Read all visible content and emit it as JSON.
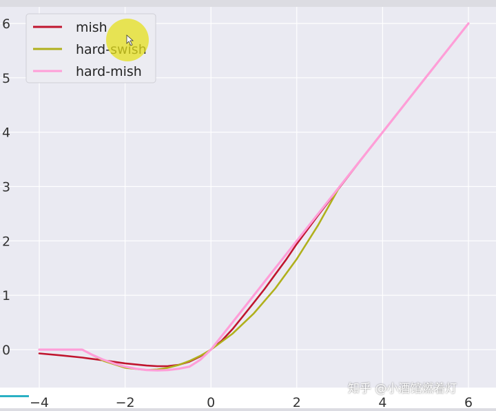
{
  "chart_data": {
    "type": "line",
    "title": "",
    "xlabel": "",
    "ylabel": "",
    "xlim": [
      -4.2,
      6.2
    ],
    "ylim": [
      -0.65,
      6.3
    ],
    "grid": true,
    "legend_position": "top-left",
    "x_ticks": [
      -4,
      -2,
      0,
      2,
      4,
      6
    ],
    "y_ticks": [
      0,
      1,
      2,
      3,
      4,
      5,
      6
    ],
    "x_tick_labels": [
      "−4",
      "−2",
      "0",
      "2",
      "4",
      "6"
    ],
    "y_tick_labels": [
      "0",
      "1",
      "2",
      "3",
      "4",
      "5",
      "6"
    ],
    "series": [
      {
        "name": "mish",
        "color": "#c0152e",
        "x": [
          -4,
          -3.5,
          -3,
          -2.5,
          -2,
          -1.5,
          -1.25,
          -1,
          -0.75,
          -0.5,
          -0.25,
          0,
          0.25,
          0.5,
          0.75,
          1,
          1.25,
          1.5,
          1.75,
          2,
          2.5,
          3,
          3.5,
          4,
          5,
          6
        ],
        "y": [
          -0.07,
          -0.105,
          -0.146,
          -0.198,
          -0.253,
          -0.293,
          -0.304,
          -0.303,
          -0.279,
          -0.222,
          -0.125,
          0,
          0.164,
          0.375,
          0.618,
          0.865,
          1.116,
          1.385,
          1.653,
          1.944,
          2.474,
          2.986,
          3.497,
          3.997,
          4.999,
          6.0
        ]
      },
      {
        "name": "hard-swish",
        "color": "#b0b01c",
        "x": [
          -4,
          -3,
          -2.5,
          -2,
          -1.5,
          -1.25,
          -1,
          -0.75,
          -0.5,
          -0.25,
          0,
          0.5,
          1,
          1.5,
          2,
          2.5,
          3,
          4,
          5,
          6
        ],
        "y": [
          0,
          0,
          -0.208,
          -0.333,
          -0.375,
          -0.365,
          -0.333,
          -0.281,
          -0.208,
          -0.115,
          0,
          0.292,
          0.667,
          1.125,
          1.667,
          2.292,
          3.0,
          4.0,
          5.0,
          6.0
        ]
      },
      {
        "name": "hard-mish",
        "color": "#ff9ed8",
        "x": [
          -4,
          -3.5,
          -3,
          -2.75,
          -2.5,
          -2.25,
          -2,
          -1.75,
          -1.5,
          -1.25,
          -1,
          -0.75,
          -0.5,
          -0.25,
          0,
          0.5,
          1,
          1.5,
          2,
          3,
          4,
          5,
          6
        ],
        "y": [
          0,
          0,
          0,
          -0.102,
          -0.188,
          -0.258,
          -0.313,
          -0.352,
          -0.375,
          -0.383,
          -0.375,
          -0.352,
          -0.313,
          -0.188,
          0,
          0.5,
          1.0,
          1.5,
          2.0,
          3.0,
          4.0,
          5.0,
          6.0
        ]
      }
    ]
  },
  "watermark": "知乎 @小酒馆燃着灯"
}
